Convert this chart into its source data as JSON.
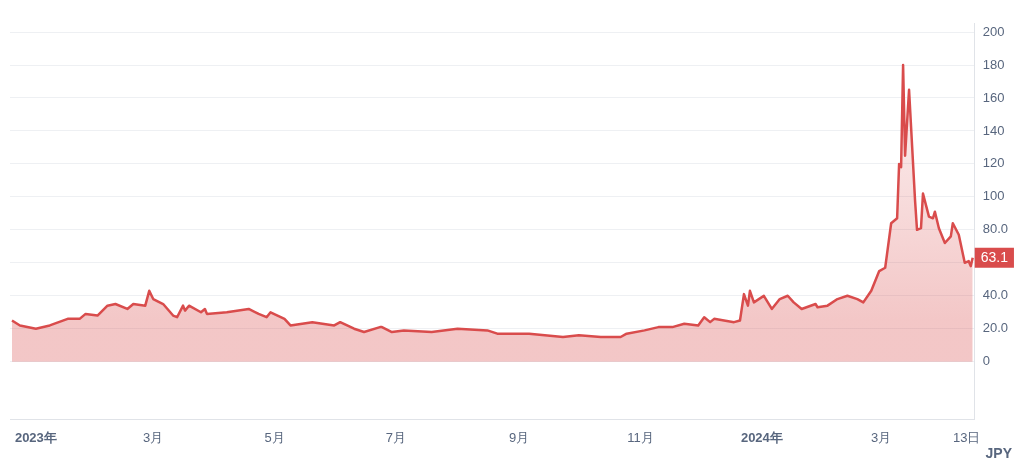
{
  "chart_data": {
    "type": "area",
    "x": [
      "2022-12-20",
      "2022-12-24",
      "2023-01-01",
      "2023-01-08",
      "2023-01-17",
      "2023-01-23",
      "2023-01-26",
      "2023-02-01",
      "2023-02-06",
      "2023-02-10",
      "2023-02-16",
      "2023-02-19",
      "2023-02-25",
      "2023-02-27",
      "2023-03-01",
      "2023-03-06",
      "2023-03-11",
      "2023-03-13",
      "2023-03-16",
      "2023-03-17",
      "2023-03-19",
      "2023-03-25",
      "2023-03-27",
      "2023-03-28",
      "2023-04-07",
      "2023-04-18",
      "2023-04-23",
      "2023-04-27",
      "2023-04-29",
      "2023-05-06",
      "2023-05-09",
      "2023-05-20",
      "2023-05-31",
      "2023-06-03",
      "2023-06-10",
      "2023-06-15",
      "2023-06-23",
      "2023-06-24",
      "2023-06-29",
      "2023-07-05",
      "2023-07-19",
      "2023-08-01",
      "2023-08-16",
      "2023-08-21",
      "2023-09-06",
      "2023-09-23",
      "2023-10-01",
      "2023-10-12",
      "2023-10-22",
      "2023-10-25",
      "2023-11-03",
      "2023-11-10",
      "2023-11-17",
      "2023-11-23",
      "2023-11-30",
      "2023-12-03",
      "2023-12-06",
      "2023-12-08",
      "2023-12-13",
      "2023-12-18",
      "2023-12-21",
      "2023-12-23",
      "2023-12-25",
      "2023-12-26",
      "2023-12-28",
      "2024-01-02",
      "2024-01-06",
      "2024-01-10",
      "2024-01-14",
      "2024-01-17",
      "2024-01-21",
      "2024-01-28",
      "2024-01-29",
      "2024-02-03",
      "2024-02-08",
      "2024-02-13",
      "2024-02-18",
      "2024-02-21",
      "2024-02-25",
      "2024-02-29",
      "2024-03-03",
      "2024-03-06",
      "2024-03-09",
      "2024-03-10",
      "2024-03-11",
      "2024-03-12",
      "2024-03-13",
      "2024-03-15",
      "2024-03-18",
      "2024-03-19",
      "2024-03-21",
      "2024-03-22",
      "2024-03-25",
      "2024-03-27",
      "2024-03-28",
      "2024-03-30",
      "2024-04-02",
      "2024-04-05",
      "2024-04-06",
      "2024-04-09",
      "2024-04-12",
      "2024-04-14",
      "2024-04-15",
      "2024-04-16"
    ],
    "series": [
      {
        "color": "#d94c4c",
        "values": [
          25,
          22,
          20,
          22,
          26,
          26,
          29,
          28,
          34,
          35,
          32,
          35,
          34,
          43,
          38,
          35,
          28,
          27,
          34,
          31,
          34,
          30,
          32,
          29,
          30,
          32,
          29,
          27,
          30,
          26,
          22,
          24,
          22,
          24,
          20,
          18,
          21,
          21,
          18,
          19,
          18,
          20,
          19,
          17,
          17,
          15,
          16,
          15,
          15,
          17,
          19,
          21,
          21,
          23,
          22,
          27,
          24,
          26,
          25,
          24,
          25,
          41,
          34,
          43,
          36,
          40,
          32,
          38,
          40,
          36,
          32,
          35,
          33,
          34,
          38,
          40,
          38,
          36,
          43,
          55,
          57,
          84,
          87,
          120,
          118,
          180,
          125,
          165,
          98,
          80,
          81,
          102,
          88,
          87,
          91,
          81,
          72,
          76,
          84,
          77,
          60,
          61,
          58,
          63.1
        ]
      }
    ],
    "xlim": [
      "2022-12-19",
      "2024-04-17"
    ],
    "xticks": [
      {
        "value": "2023-01-01",
        "label": "2023年"
      },
      {
        "value": "2023-03-01",
        "label": "3月"
      },
      {
        "value": "2023-05-01",
        "label": "5月"
      },
      {
        "value": "2023-07-01",
        "label": "7月"
      },
      {
        "value": "2023-09-01",
        "label": "9月"
      },
      {
        "value": "2023-11-01",
        "label": "11月"
      },
      {
        "value": "2024-01-01",
        "label": "2024年"
      },
      {
        "value": "2024-03-01",
        "label": "3月"
      },
      {
        "value": "2024-04-13",
        "label": "13日"
      }
    ],
    "ylim": [
      -35,
      205
    ],
    "yticks": [
      0,
      {
        "value": 20,
        "label": "20.0"
      },
      {
        "value": 40,
        "label": "40.0"
      },
      {
        "value": 60,
        "label": null
      },
      {
        "value": 80,
        "label": "80.0"
      },
      100,
      120,
      140,
      160,
      180,
      200
    ],
    "grid": "y",
    "legend": false,
    "marker": "none",
    "line_style": "solid",
    "annotations": [
      {
        "text": "63.1",
        "x": "2024-04-16",
        "y": 63.1
      },
      "JPY"
    ]
  }
}
